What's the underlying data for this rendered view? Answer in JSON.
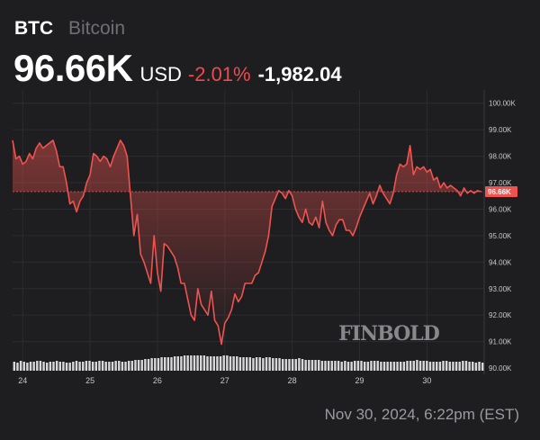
{
  "header": {
    "ticker": "BTC",
    "name": "Bitcoin",
    "price": "96.66K",
    "currency": "USD",
    "change_pct": "-2.01%",
    "change_abs": "-1,982.04"
  },
  "footer": {
    "timestamp": "Nov 30, 2024, 6:22pm (EST)"
  },
  "watermark": "FINBOLD",
  "colors": {
    "background": "#1e1e20",
    "line": "#ef5350",
    "negative": "#ef4a4c",
    "grid": "#2c2c30",
    "volume": "#d7d7da",
    "reference_line": "#ef5350"
  },
  "chart_data": {
    "type": "area",
    "title": "",
    "xlabel": "",
    "ylabel": "",
    "x_ticks": [
      24,
      25,
      26,
      27,
      28,
      29,
      30
    ],
    "y_ticks": [
      90000,
      91000,
      92000,
      93000,
      94000,
      95000,
      96000,
      97000,
      98000,
      99000,
      100000
    ],
    "y_tick_labels": [
      "90.00K",
      "91.00K",
      "92.00K",
      "93.00K",
      "94.00K",
      "95.00K",
      "96.00K",
      "97.00K",
      "98.00K",
      "99.00K",
      "100.00K"
    ],
    "xlim": [
      23.85,
      30.85
    ],
    "ylim": [
      89900,
      100500
    ],
    "y_axis_side": "right",
    "grid": true,
    "current_value": 96660,
    "current_label": "96.66K",
    "series": [
      {
        "x": [
          23.85,
          23.9,
          23.95,
          24.0,
          24.05,
          24.1,
          24.15,
          24.2,
          24.25,
          24.3,
          24.35,
          24.4,
          24.45,
          24.5,
          24.55,
          24.6,
          24.65,
          24.7,
          24.75,
          24.8,
          24.85,
          24.9,
          24.95,
          25.0,
          25.05,
          25.1,
          25.15,
          25.2,
          25.25,
          25.3,
          25.35,
          25.4,
          25.45,
          25.5,
          25.55,
          25.6,
          25.65,
          25.7,
          25.75,
          25.8,
          25.85,
          25.9,
          25.95,
          26.0,
          26.05,
          26.1,
          26.15,
          26.2,
          26.25,
          26.3,
          26.35,
          26.4,
          26.45,
          26.5,
          26.55,
          26.6,
          26.65,
          26.7,
          26.75,
          26.8,
          26.85,
          26.9,
          26.95,
          27.0,
          27.05,
          27.1,
          27.15,
          27.2,
          27.25,
          27.3,
          27.35,
          27.4,
          27.45,
          27.5,
          27.55,
          27.6,
          27.65,
          27.7,
          27.75,
          27.8,
          27.85,
          27.9,
          27.95,
          28.0,
          28.05,
          28.1,
          28.15,
          28.2,
          28.25,
          28.3,
          28.35,
          28.4,
          28.45,
          28.5,
          28.55,
          28.6,
          28.65,
          28.7,
          28.75,
          28.8,
          28.85,
          28.9,
          28.95,
          29.0,
          29.05,
          29.1,
          29.15,
          29.2,
          29.25,
          29.3,
          29.35,
          29.4,
          29.45,
          29.5,
          29.55,
          29.6,
          29.65,
          29.7,
          29.75,
          29.8,
          29.85,
          29.9,
          29.95,
          30.0,
          30.05,
          30.1,
          30.15,
          30.2,
          30.25,
          30.3,
          30.35,
          30.4,
          30.45,
          30.5,
          30.55,
          30.6,
          30.65,
          30.7,
          30.75,
          30.8
        ],
        "y": [
          98600,
          97900,
          98000,
          97700,
          97800,
          98100,
          97900,
          98300,
          98500,
          98300,
          98400,
          98500,
          98600,
          98200,
          97600,
          97600,
          97000,
          96200,
          96300,
          95900,
          96300,
          96500,
          97000,
          97300,
          98100,
          98000,
          97800,
          98000,
          97900,
          97600,
          98000,
          98300,
          98600,
          98400,
          98000,
          96500,
          95000,
          95800,
          94300,
          94000,
          93600,
          93200,
          95000,
          93600,
          92900,
          94700,
          94600,
          94400,
          94200,
          93800,
          93200,
          93200,
          92600,
          92000,
          91800,
          93000,
          92400,
          92200,
          92000,
          92900,
          91800,
          91600,
          90900,
          91700,
          91900,
          92200,
          92800,
          92500,
          92700,
          93200,
          93200,
          93200,
          93500,
          93600,
          94000,
          94400,
          95000,
          96100,
          96400,
          96700,
          96600,
          96400,
          96700,
          96500,
          96000,
          95700,
          95500,
          96000,
          95500,
          95400,
          95700,
          95300,
          96300,
          95500,
          95200,
          95000,
          95400,
          95600,
          95600,
          95200,
          95200,
          95000,
          95300,
          95700,
          96000,
          96300,
          96600,
          96200,
          96500,
          96900,
          96600,
          96400,
          96200,
          96600,
          97300,
          97700,
          97600,
          97700,
          98400,
          97300,
          97600,
          97500,
          97600,
          97400,
          97500,
          97100,
          97200,
          96800,
          97000,
          96800,
          96900,
          96800,
          96700,
          96500,
          96800,
          96600,
          96700,
          96600,
          96700,
          96660
        ]
      }
    ],
    "volume": [
      10,
      9,
      11,
      10,
      9,
      10,
      10,
      11,
      11,
      10,
      9,
      10,
      10,
      11,
      10,
      10,
      9,
      9,
      10,
      11,
      10,
      10,
      11,
      11,
      10,
      10,
      11,
      11,
      10,
      10,
      10,
      11,
      11,
      10,
      10,
      11,
      11,
      12,
      12,
      12,
      13,
      13,
      14,
      14,
      14,
      15,
      15,
      15,
      15,
      16,
      16,
      16,
      17,
      17,
      17,
      17,
      17,
      17,
      17,
      16,
      16,
      16,
      16,
      16,
      17,
      17,
      16,
      16,
      16,
      15,
      15,
      15,
      15,
      14,
      15,
      15,
      14,
      15,
      15,
      14,
      14,
      14,
      13,
      13,
      13,
      13,
      13,
      14,
      13,
      12,
      12,
      12,
      12,
      12,
      11,
      11,
      11,
      11,
      11,
      11,
      10,
      11,
      10,
      10,
      11,
      11,
      11,
      10,
      10,
      11,
      11,
      11,
      10,
      10,
      10,
      10,
      10,
      10,
      10,
      10,
      11,
      11,
      11,
      12,
      11,
      11,
      11,
      10,
      10,
      10,
      10,
      11,
      11,
      10,
      10,
      10,
      10,
      11,
      11,
      10,
      10,
      9,
      10,
      9
    ]
  }
}
